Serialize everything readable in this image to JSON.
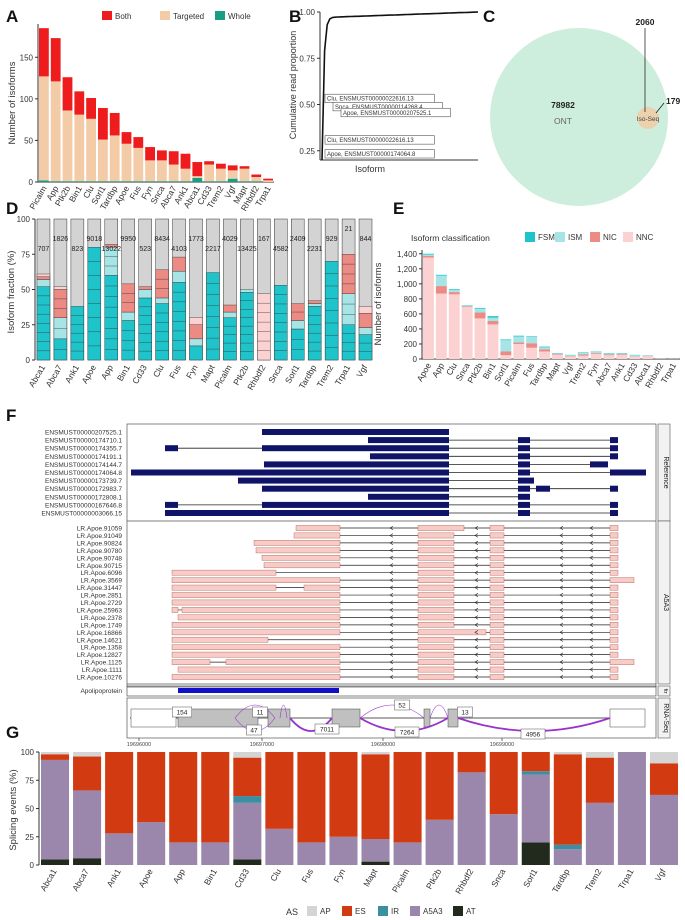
{
  "colors": {
    "both": "#ee1c1c",
    "targeted": "#f3cba7",
    "whole": "#1a9e83",
    "fsm": "#1fc4cb",
    "ism": "#a6e4e6",
    "nic": "#ec8a84",
    "nnc": "#fbd1d1",
    "panel_d_bg": "#d3d3d3",
    "navy": "#101468",
    "pink_box": "#f8cbc6",
    "ap": "#d4d4d4",
    "es": "#d23b12",
    "ir": "#3c8fa3",
    "a5a3": "#9b87ab",
    "at": "#222a1e",
    "ont": "#cdeedd",
    "iso": "#f0cba5",
    "purple": "#9933cc",
    "ftr": "#1010c8",
    "grey_exon": "#c0c0c0"
  },
  "chart_data": [
    {
      "panel": "A",
      "type": "bar",
      "ylabel": "Number of isoforms",
      "ylim": [
        0,
        190
      ],
      "yticks": [
        0,
        50,
        100,
        150
      ],
      "legend": [
        "Both",
        "Targeted",
        "Whole"
      ],
      "categories": [
        "Picalm",
        "App",
        "Ptk2b",
        "Bin1",
        "Clu",
        "Sorl1",
        "Tardbp",
        "Apoe",
        "Fus",
        "Fyn",
        "Snca",
        "Abca7",
        "Ank1",
        "Abca1",
        "Cd33",
        "Trem2",
        "Vgf",
        "Mapt",
        "Rhbdf2",
        "Trpa1"
      ],
      "series": [
        {
          "name": "Whole",
          "values": [
            2,
            1,
            1,
            1,
            1,
            1,
            1,
            1,
            1,
            1,
            1,
            1,
            1,
            5,
            1,
            1,
            4,
            1,
            1,
            0
          ]
        },
        {
          "name": "Targeted",
          "values": [
            125,
            120,
            85,
            80,
            75,
            50,
            55,
            45,
            40,
            25,
            25,
            20,
            15,
            2,
            20,
            15,
            10,
            15,
            5,
            2
          ]
        },
        {
          "name": "Both",
          "values": [
            58,
            52,
            40,
            28,
            25,
            38,
            27,
            14,
            13,
            16,
            12,
            16,
            18,
            17,
            4,
            6,
            6,
            3,
            3,
            2
          ]
        }
      ]
    },
    {
      "panel": "B",
      "type": "line",
      "xlabel": "Isoform",
      "ylabel": "Cumulative read proportion",
      "ylim": [
        0.2,
        1.0
      ],
      "yticks": [
        "0.25",
        "0.50",
        "0.75",
        "1.00"
      ],
      "annotations": [
        {
          "label": "Clu, ENSMUST00000022616.13",
          "y": 0.534
        },
        {
          "label": "Snca, ENSMUST00000114268.4",
          "y": 0.49
        },
        {
          "label": "Apoe, ENSMUST00000207525.1",
          "y": 0.458
        },
        {
          "label": "Clu, ENSMUST00000022616.13",
          "y": 0.31
        },
        {
          "label": "Apoe, ENSMUST00000174064.8",
          "y": 0.235
        }
      ]
    },
    {
      "panel": "C",
      "type": "venn",
      "sets": [
        {
          "name": "ONT",
          "only": "78982"
        },
        {
          "name": "Iso-Seq",
          "only": "179"
        }
      ],
      "overlap": "2060",
      "ont_label": "ONT",
      "iso_label": "Iso-Seq"
    },
    {
      "panel": "D",
      "type": "bar",
      "ylabel": "Isoform fraction (%)",
      "ylim": [
        0,
        100
      ],
      "yticks": [
        0,
        25,
        50,
        75,
        100
      ],
      "categories": [
        "Abca1",
        "Abca7",
        "Ank1",
        "Apoe",
        "App",
        "Bin1",
        "Cd33",
        "Clu",
        "Fus",
        "Fyn",
        "Mapt",
        "Picalm",
        "Ptk2b",
        "Rhbdf2",
        "Snca",
        "Sorl1",
        "Tardbp",
        "Trem2",
        "Trpa1",
        "Vgf"
      ],
      "totals": [
        "707",
        "1826",
        "823",
        "9018",
        "13022",
        "9950",
        "523",
        "8434",
        "4103",
        "1773",
        "2217",
        "4029",
        "13425",
        "167",
        "4582",
        "2409",
        "2231",
        "929",
        "21",
        "844"
      ],
      "series": [
        {
          "name": "FSM",
          "values": [
            52,
            15,
            38,
            80,
            60,
            28,
            44,
            40,
            55,
            10,
            62,
            30,
            48,
            0,
            53,
            22,
            38,
            70,
            25,
            18
          ]
        },
        {
          "name": "ISM",
          "values": [
            5,
            15,
            0,
            0,
            20,
            6,
            6,
            4,
            8,
            5,
            0,
            4,
            2,
            0,
            0,
            6,
            2,
            0,
            22,
            5
          ]
        },
        {
          "name": "NIC",
          "values": [
            2,
            20,
            0,
            0,
            2,
            20,
            2,
            20,
            10,
            10,
            0,
            5,
            0,
            0,
            0,
            12,
            2,
            0,
            28,
            10
          ]
        },
        {
          "name": "NNC",
          "values": [
            2,
            2,
            0,
            0,
            0,
            0,
            0,
            0,
            0,
            5,
            0,
            0,
            0,
            47,
            0,
            0,
            0,
            0,
            0,
            5
          ]
        }
      ]
    },
    {
      "panel": "E",
      "type": "bar",
      "legend_title": "Isoform classification",
      "legend": [
        "FSM",
        "ISM",
        "NIC",
        "NNC"
      ],
      "ylabel": "Number of isoforms",
      "ylim": [
        0,
        1450
      ],
      "yticks": [
        "0",
        "200",
        "400",
        "600",
        "800",
        "1,000",
        "1,200",
        "1,400"
      ],
      "categories": [
        "Apoe",
        "App",
        "Clu",
        "Snca",
        "Ptk2b",
        "Bin1",
        "Sorl1",
        "Picalm",
        "Fus",
        "Tardbp",
        "Mapt",
        "Vgf",
        "Trem2",
        "Fyn",
        "Abca7",
        "Ank1",
        "Cd33",
        "Abca1",
        "Rhbdf2",
        "Trpa1"
      ],
      "series": [
        {
          "name": "FSM",
          "values": [
            10,
            10,
            10,
            5,
            10,
            20,
            10,
            10,
            5,
            10,
            5,
            5,
            5,
            5,
            5,
            5,
            5,
            2,
            2,
            0
          ]
        },
        {
          "name": "ISM",
          "values": [
            20,
            140,
            30,
            10,
            50,
            45,
            150,
            80,
            90,
            25,
            5,
            10,
            25,
            15,
            15,
            10,
            15,
            5,
            3,
            0
          ]
        },
        {
          "name": "NIC",
          "values": [
            20,
            100,
            30,
            10,
            80,
            45,
            50,
            20,
            60,
            30,
            10,
            5,
            15,
            10,
            10,
            10,
            5,
            5,
            2,
            0
          ]
        },
        {
          "name": "NNC",
          "values": [
            1350,
            870,
            860,
            690,
            540,
            460,
            50,
            200,
            150,
            100,
            60,
            35,
            45,
            70,
            50,
            55,
            30,
            38,
            5,
            2
          ]
        }
      ]
    },
    {
      "panel": "F",
      "type": "track",
      "reference": [
        "ENSMUST00000207525.1",
        "ENSMUST00000174710.1",
        "ENSMUST00000174355.7",
        "ENSMUST00000174191.1",
        "ENSMUST00000174144.7",
        "ENSMUST00000174064.8",
        "ENSMUST00000173739.7",
        "ENSMUST00000172983.7",
        "ENSMUST00000172808.1",
        "ENSMUST00000167646.8",
        "ENSMUST00000003066.15"
      ],
      "isoforms": [
        "LR.Apoe.91059",
        "LR.Apoe.91049",
        "LR.Apoe.90824",
        "LR.Apoe.90780",
        "LR.Apoe.90748",
        "LR.Apoe.90715",
        "LR.Apoe.6096",
        "LR.Apoe.3569",
        "LR.Apoe.31447",
        "LR.Apoe.2851",
        "LR.Apoe.2729",
        "LR.Apoe.25963",
        "LR.Apoe.2378",
        "LR.Apoe.1749",
        "LR.Apoe.16866",
        "LR.Apoe.14621",
        "LR.Apoe.1358",
        "LR.Apoe.12827",
        "LR.Apoe.1125",
        "LR.Apoe.1111",
        "LR.Apoe.10276"
      ],
      "ftr_label": "Apolipoprotein",
      "strip_labels": [
        "Reference",
        "A5A3",
        "ftr",
        "RNA-Seq"
      ],
      "junctions": [
        "154",
        "11",
        "47",
        "7011",
        "52",
        "7264",
        "13",
        "4956"
      ],
      "xticks": [
        "19696000",
        "19697000",
        "19698000",
        "19699000"
      ]
    },
    {
      "panel": "G",
      "type": "bar",
      "ylabel": "Splicing events (%)",
      "ylim": [
        0,
        100
      ],
      "yticks": [
        0,
        25,
        50,
        75,
        100
      ],
      "legend_title": "AS",
      "legend": [
        "AP",
        "ES",
        "IR",
        "A5A3",
        "AT"
      ],
      "categories": [
        "Abca1",
        "Abca7",
        "Ank1",
        "Apoe",
        "App",
        "Bin1",
        "Cd33",
        "Clu",
        "Fus",
        "Fyn",
        "Mapt",
        "Picalm",
        "Ptk2b",
        "Rhbdf2",
        "Snca",
        "Sorl1",
        "Tardbp",
        "Trem2",
        "Trpa1",
        "Vgf"
      ],
      "series": [
        {
          "name": "AT",
          "values": [
            5,
            6,
            0,
            0,
            0,
            0,
            5,
            0,
            0,
            0,
            3,
            0,
            0,
            0,
            0,
            20,
            0,
            0,
            0,
            0
          ]
        },
        {
          "name": "A5A3",
          "values": [
            88,
            60,
            28,
            38,
            20,
            20,
            50,
            32,
            20,
            25,
            20,
            20,
            40,
            82,
            45,
            60,
            14,
            55,
            100,
            62
          ]
        },
        {
          "name": "IR",
          "values": [
            0,
            0,
            0,
            0,
            0,
            0,
            6,
            0,
            0,
            0,
            0,
            0,
            0,
            0,
            0,
            3,
            4,
            0,
            0,
            0
          ]
        },
        {
          "name": "ES",
          "values": [
            5,
            30,
            72,
            62,
            80,
            80,
            34,
            68,
            80,
            75,
            75,
            80,
            60,
            18,
            55,
            17,
            80,
            40,
            0,
            28
          ]
        },
        {
          "name": "AP",
          "values": [
            2,
            4,
            0,
            0,
            0,
            0,
            5,
            0,
            0,
            0,
            2,
            0,
            0,
            0,
            0,
            0,
            2,
            5,
            0,
            10
          ]
        }
      ]
    }
  ],
  "panel_labels": [
    "A",
    "B",
    "C",
    "D",
    "E",
    "F",
    "G"
  ]
}
